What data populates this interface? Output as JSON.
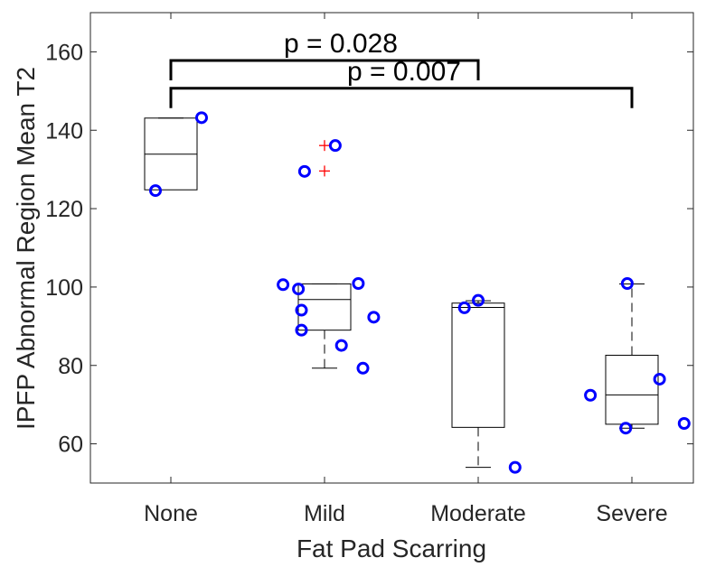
{
  "chart_data": {
    "type": "box",
    "xlabel": "Fat Pad Scarring",
    "ylabel": "IPFP Abnormal Region Mean T2",
    "categories": [
      "None",
      "Mild",
      "Moderate",
      "Severe"
    ],
    "ylim": [
      50,
      170
    ],
    "yticks": [
      60,
      80,
      100,
      120,
      140,
      160
    ],
    "grid": false,
    "boxes": [
      {
        "category": "None",
        "q1": 124.8,
        "median": 133.9,
        "q3": 143.1,
        "whisker_low": 124.8,
        "whisker_high": 143.1,
        "outliers": []
      },
      {
        "category": "Mild",
        "q1": 89.0,
        "median": 96.8,
        "q3": 100.8,
        "whisker_low": 79.3,
        "whisker_high": 100.8,
        "outliers": [
          136.1,
          129.6
        ]
      },
      {
        "category": "Moderate",
        "q1": 64.2,
        "median": 94.8,
        "q3": 95.9,
        "whisker_low": 54.0,
        "whisker_high": 96.5,
        "outliers": []
      },
      {
        "category": "Severe",
        "q1": 65.0,
        "median": 72.5,
        "q3": 82.6,
        "whisker_low": 64.0,
        "whisker_high": 100.8,
        "outliers": []
      }
    ],
    "points": [
      {
        "category": "None",
        "values": [
          143.2,
          124.6
        ],
        "offsets": [
          0.2,
          -0.1
        ]
      },
      {
        "category": "Mild",
        "values": [
          136.1,
          129.5,
          100.6,
          100.9,
          99.5,
          94.1,
          92.3,
          89.0,
          85.1,
          79.3
        ],
        "offsets": [
          0.07,
          -0.13,
          -0.27,
          0.22,
          -0.17,
          -0.15,
          0.32,
          -0.15,
          0.11,
          0.25
        ]
      },
      {
        "category": "Moderate",
        "values": [
          96.6,
          94.7,
          54.0
        ],
        "offsets": [
          0.0,
          -0.09,
          0.24
        ]
      },
      {
        "category": "Severe",
        "values": [
          100.9,
          76.5,
          72.4,
          65.2,
          64.0
        ],
        "offsets": [
          -0.03,
          0.18,
          -0.27,
          0.34,
          -0.04
        ]
      }
    ],
    "annotations": [
      {
        "text": "p = 0.028",
        "from": "None",
        "to": "Moderate",
        "y": 157.8
      },
      {
        "text": "p = 0.007",
        "from": "None",
        "to": "Severe",
        "y": 150.7
      }
    ],
    "colors": {
      "points": "#0000ff",
      "outliers": "#ff0000",
      "box": "#000000",
      "brackets": "#000000"
    }
  }
}
